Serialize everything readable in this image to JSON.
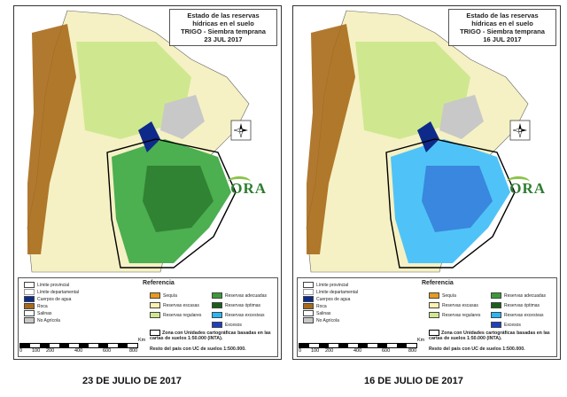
{
  "panels": [
    {
      "title_line1": "Estado de las reservas",
      "title_line2": "hídricas en el suelo",
      "title_line3": "TRIGO - Siembra temprana",
      "title_line4": "23 JUL 2017",
      "caption": "23 DE JULIO DE 2017",
      "wet_color": "#4caf50"
    },
    {
      "title_line1": "Estado de las reservas",
      "title_line2": "hídricas en el suelo",
      "title_line3": "TRIGO - Siembra temprana",
      "title_line4": "16 JUL 2017",
      "caption": "16 DE JULIO DE 2017",
      "wet_color": "#4fc3f7"
    }
  ],
  "logo_text": "ORA",
  "legend": {
    "title": "Referencia",
    "limits": [
      "Límite provincial",
      "Límite departamental",
      "Cuerpos de agua",
      "Roca",
      "Salinas",
      "No Agrícola"
    ],
    "classes": [
      {
        "label": "Sequía",
        "color": "#e69a1e"
      },
      {
        "label": "Reservas adecuadas",
        "color": "#3a9a3a"
      },
      {
        "label": "Reservas escasas",
        "color": "#fbf2b0"
      },
      {
        "label": "Reservas óptimas",
        "color": "#1a5e1a"
      },
      {
        "label": "Reservas regulares",
        "color": "#cfe88f"
      },
      {
        "label": "Reservas excesivas",
        "color": "#29b6f6"
      },
      {
        "label": "Excesos",
        "color": "#1f3fbf"
      }
    ],
    "limit_colors": {
      "water": "#0d2a8a",
      "rock": "#a86a1a",
      "salinas": "#ffffff",
      "no_agricola": "#c8c8c8"
    },
    "zone_text": "Zona con Unidades cartográficas basadas en las cartas de suelos 1:50.000 (INTA).",
    "rest_text": "Resto del país con UC de suelos 1:500.000."
  },
  "scale": {
    "ticks": [
      "0",
      "100",
      "200",
      "400",
      "600",
      "800"
    ],
    "unit": "Km"
  },
  "north_label": "N"
}
